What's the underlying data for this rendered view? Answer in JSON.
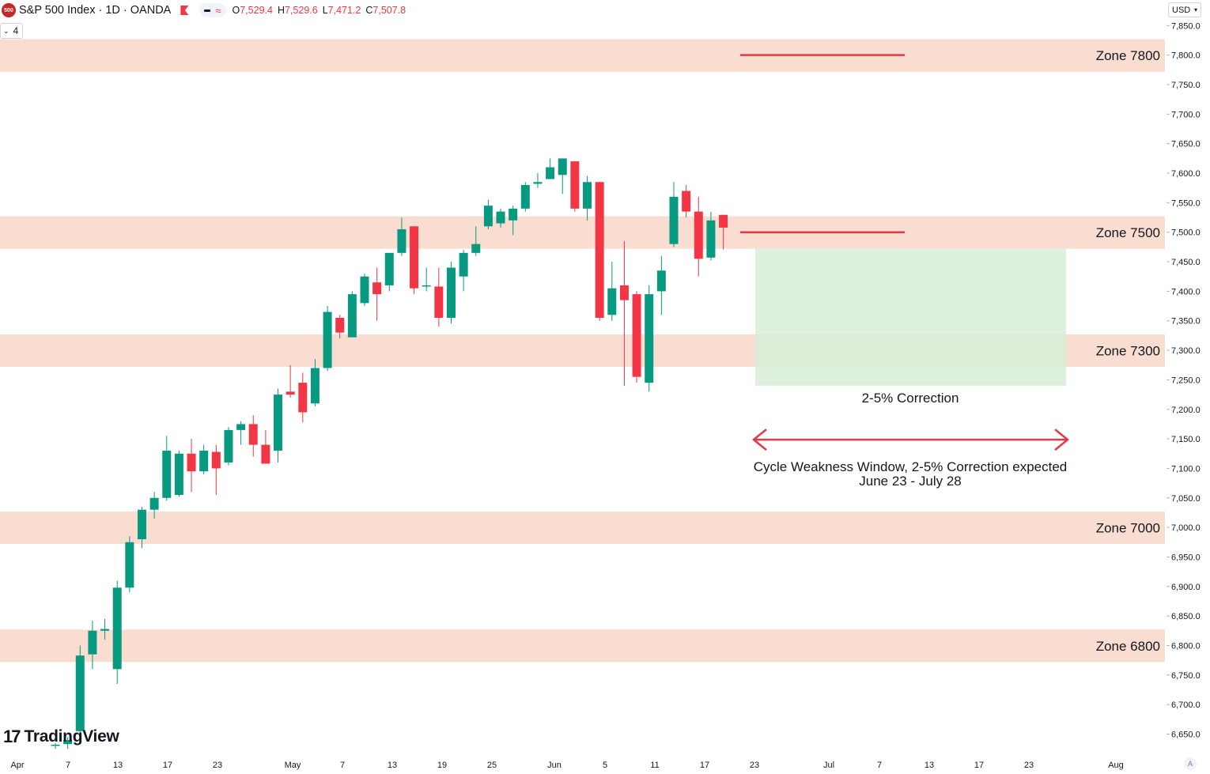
{
  "header": {
    "symbol_badge": "500",
    "title": "S&P 500 Index · 1D · OANDA",
    "ohlc": [
      {
        "label": "O",
        "value": "7,529.4"
      },
      {
        "label": "H",
        "value": "7,529.6"
      },
      {
        "label": "L",
        "value": "7,471.2"
      },
      {
        "label": "C",
        "value": "7,507.8"
      }
    ],
    "indicator_count": "4",
    "currency": "USD",
    "auto_label": "A"
  },
  "branding": "TradingView",
  "colors": {
    "up": "#089981",
    "down": "#f23645",
    "zone_fill": "#f8ddd0",
    "correction_fill": "#d8eed8",
    "annotation": "#e53945"
  },
  "chart_data": {
    "type": "candlestick",
    "y_axis": {
      "min": 6625,
      "max": 7865,
      "tick_step": 50,
      "tick_labels": [
        "6,650.0",
        "6,700.0",
        "6,750.0",
        "6,800.0",
        "6,850.0",
        "6,900.0",
        "6,950.0",
        "7,000.0",
        "7,050.0",
        "7,100.0",
        "7,150.0",
        "7,200.0",
        "7,250.0",
        "7,300.0",
        "7,350.0",
        "7,400.0",
        "7,450.0",
        "7,500.0",
        "7,550.0",
        "7,600.0",
        "7,650.0",
        "7,700.0",
        "7,750.0",
        "7,800.0",
        "7,850.0"
      ]
    },
    "x_axis_labels": [
      "Apr",
      "7",
      "13",
      "17",
      "23",
      "May",
      "7",
      "13",
      "19",
      "25",
      "Jun",
      "5",
      "11",
      "17",
      "23",
      "Jul",
      "7",
      "13",
      "17",
      "23",
      "Aug"
    ],
    "candles": [
      {
        "o": 6630,
        "h": 6635,
        "l": 6625,
        "c": 6632
      },
      {
        "o": 6633,
        "h": 6645,
        "l": 6625,
        "c": 6640
      },
      {
        "o": 6655,
        "h": 6800,
        "l": 6640,
        "c": 6783
      },
      {
        "o": 6785,
        "h": 6842,
        "l": 6760,
        "c": 6825
      },
      {
        "o": 6825,
        "h": 6845,
        "l": 6810,
        "c": 6828
      },
      {
        "o": 6760,
        "h": 6910,
        "l": 6735,
        "c": 6898
      },
      {
        "o": 6898,
        "h": 6985,
        "l": 6890,
        "c": 6975
      },
      {
        "o": 6980,
        "h": 7035,
        "l": 6965,
        "c": 7030
      },
      {
        "o": 7030,
        "h": 7060,
        "l": 7015,
        "c": 7050
      },
      {
        "o": 7050,
        "h": 7155,
        "l": 7045,
        "c": 7130
      },
      {
        "o": 7055,
        "h": 7130,
        "l": 7052,
        "c": 7125
      },
      {
        "o": 7125,
        "h": 7150,
        "l": 7060,
        "c": 7095
      },
      {
        "o": 7095,
        "h": 7140,
        "l": 7090,
        "c": 7130
      },
      {
        "o": 7128,
        "h": 7140,
        "l": 7055,
        "c": 7100
      },
      {
        "o": 7110,
        "h": 7170,
        "l": 7105,
        "c": 7165
      },
      {
        "o": 7165,
        "h": 7180,
        "l": 7140,
        "c": 7175
      },
      {
        "o": 7175,
        "h": 7190,
        "l": 7120,
        "c": 7140
      },
      {
        "o": 7140,
        "h": 7165,
        "l": 7110,
        "c": 7108
      },
      {
        "o": 7130,
        "h": 7235,
        "l": 7110,
        "c": 7225
      },
      {
        "o": 7230,
        "h": 7275,
        "l": 7220,
        "c": 7225
      },
      {
        "o": 7245,
        "h": 7262,
        "l": 7178,
        "c": 7195
      },
      {
        "o": 7210,
        "h": 7285,
        "l": 7205,
        "c": 7270
      },
      {
        "o": 7270,
        "h": 7375,
        "l": 7265,
        "c": 7365
      },
      {
        "o": 7355,
        "h": 7360,
        "l": 7320,
        "c": 7330
      },
      {
        "o": 7322,
        "h": 7400,
        "l": 7322,
        "c": 7395
      },
      {
        "o": 7380,
        "h": 7430,
        "l": 7375,
        "c": 7425
      },
      {
        "o": 7415,
        "h": 7440,
        "l": 7350,
        "c": 7395
      },
      {
        "o": 7410,
        "h": 7460,
        "l": 7400,
        "c": 7465
      },
      {
        "o": 7465,
        "h": 7525,
        "l": 7460,
        "c": 7505
      },
      {
        "o": 7510,
        "h": 7510,
        "l": 7395,
        "c": 7405
      },
      {
        "o": 7408,
        "h": 7440,
        "l": 7400,
        "c": 7410
      },
      {
        "o": 7408,
        "h": 7440,
        "l": 7340,
        "c": 7355
      },
      {
        "o": 7355,
        "h": 7450,
        "l": 7345,
        "c": 7440
      },
      {
        "o": 7425,
        "h": 7470,
        "l": 7400,
        "c": 7465
      },
      {
        "o": 7465,
        "h": 7510,
        "l": 7460,
        "c": 7480
      },
      {
        "o": 7510,
        "h": 7555,
        "l": 7505,
        "c": 7545
      },
      {
        "o": 7515,
        "h": 7540,
        "l": 7508,
        "c": 7535
      },
      {
        "o": 7520,
        "h": 7545,
        "l": 7495,
        "c": 7540
      },
      {
        "o": 7540,
        "h": 7585,
        "l": 7535,
        "c": 7580
      },
      {
        "o": 7582,
        "h": 7600,
        "l": 7575,
        "c": 7585
      },
      {
        "o": 7590,
        "h": 7625,
        "l": 7590,
        "c": 7610
      },
      {
        "o": 7597,
        "h": 7625,
        "l": 7565,
        "c": 7625
      },
      {
        "o": 7620,
        "h": 7620,
        "l": 7535,
        "c": 7540
      },
      {
        "o": 7540,
        "h": 7595,
        "l": 7520,
        "c": 7585
      },
      {
        "o": 7585,
        "h": 7585,
        "l": 7350,
        "c": 7355
      },
      {
        "o": 7360,
        "h": 7450,
        "l": 7350,
        "c": 7405
      },
      {
        "o": 7410,
        "h": 7485,
        "l": 7240,
        "c": 7385
      },
      {
        "o": 7395,
        "h": 7400,
        "l": 7245,
        "c": 7255
      },
      {
        "o": 7245,
        "h": 7410,
        "l": 7230,
        "c": 7395
      },
      {
        "o": 7400,
        "h": 7460,
        "l": 7360,
        "c": 7435
      },
      {
        "o": 7480,
        "h": 7585,
        "l": 7475,
        "c": 7560
      },
      {
        "o": 7570,
        "h": 7580,
        "l": 7525,
        "c": 7535
      },
      {
        "o": 7535,
        "h": 7560,
        "l": 7425,
        "c": 7455
      },
      {
        "o": 7457,
        "h": 7535,
        "l": 7452,
        "c": 7520
      },
      {
        "o": 7529.4,
        "h": 7529.6,
        "l": 7471.2,
        "c": 7507.8
      }
    ],
    "zones": [
      {
        "label": "Zone 7800",
        "low": 7772,
        "high": 7827
      },
      {
        "label": "Zone 7500",
        "low": 7472,
        "high": 7527
      },
      {
        "label": "Zone 7300",
        "low": 7272,
        "high": 7327
      },
      {
        "label": "Zone 7000",
        "low": 6972,
        "high": 7027
      },
      {
        "label": "Zone 6800",
        "low": 6772,
        "high": 6827
      }
    ],
    "target_lines": [
      {
        "level": 7800
      },
      {
        "level": 7500
      }
    ],
    "correction_box": {
      "from": "Jun 23",
      "to": "Jul 28",
      "high": 7472,
      "low": 7240,
      "label": "2-5% Correction"
    },
    "window_arrow": {
      "level": 7150
    },
    "annotation_lines": [
      "Cycle Weakness Window, 2-5% Correction expected",
      "June 23 - July 28"
    ]
  }
}
